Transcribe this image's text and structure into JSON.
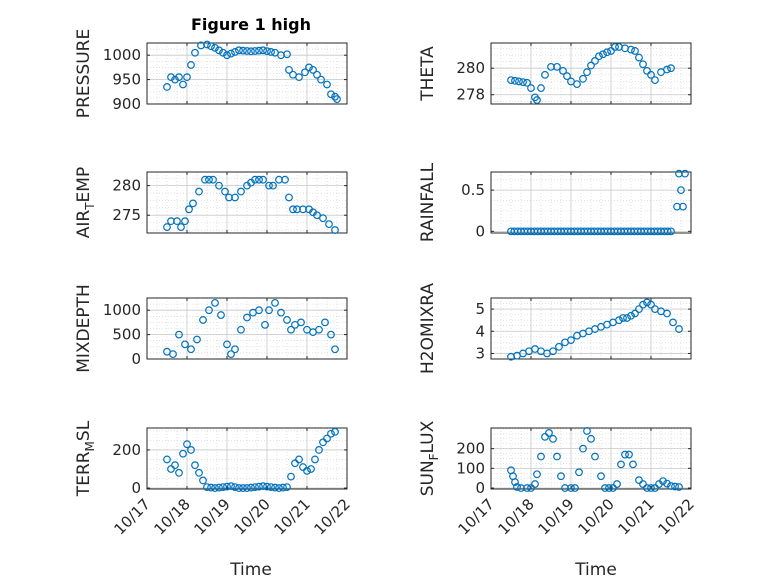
{
  "figure": {
    "title": "Figure 1 high",
    "marker_color": "#0072BD",
    "axis_color": "#262626"
  },
  "chart_data": [
    {
      "type": "scatter",
      "ylabel": "PRESSURE",
      "ylabel_sub": "",
      "ylabel_rest": "",
      "ylim": [
        900,
        1025
      ],
      "yticks": [
        900,
        950,
        1000
      ],
      "x": [
        17.5,
        17.6,
        17.7,
        17.8,
        17.9,
        18.0,
        18.1,
        18.2,
        18.35,
        18.5,
        18.7,
        19.0,
        19.3,
        19.6,
        19.9,
        20.2,
        20.35,
        20.5,
        20.55,
        20.65,
        20.8,
        20.95,
        21.05,
        21.15,
        21.25,
        21.35,
        21.5,
        21.6,
        21.7,
        21.75
      ],
      "y": [
        935,
        955,
        950,
        955,
        940,
        955,
        980,
        1005,
        1020,
        1022,
        1015,
        1000,
        1010,
        1008,
        1010,
        1005,
        1000,
        1002,
        970,
        960,
        955,
        965,
        975,
        970,
        960,
        950,
        940,
        920,
        915,
        910
      ]
    },
    {
      "type": "scatter",
      "ylabel": "THETA",
      "ylabel_sub": "",
      "ylabel_rest": "",
      "ylim": [
        277.3,
        281.9
      ],
      "yticks": [
        278,
        280
      ],
      "x": [
        17.5,
        17.7,
        17.9,
        18.0,
        18.1,
        18.15,
        18.25,
        18.35,
        18.5,
        18.65,
        18.8,
        19.0,
        19.15,
        19.3,
        19.5,
        19.7,
        19.9,
        20.0,
        20.1,
        20.2,
        20.35,
        20.5,
        20.6,
        20.7,
        20.8,
        20.9,
        21.0,
        21.1,
        21.25,
        21.4,
        21.5
      ],
      "y": [
        279.1,
        279.0,
        278.9,
        278.5,
        277.8,
        277.6,
        278.5,
        279.5,
        280.1,
        280.1,
        279.8,
        279.0,
        278.8,
        279.2,
        280.2,
        280.9,
        281.2,
        281.3,
        281.6,
        281.6,
        281.5,
        281.4,
        281.3,
        280.8,
        280.3,
        279.8,
        279.5,
        279.1,
        279.7,
        279.9,
        280.0
      ]
    },
    {
      "type": "scatter",
      "ylabel": "AIR",
      "ylabel_sub": "T",
      "ylabel_rest": "EMP",
      "ylim": [
        272,
        282.3
      ],
      "yticks": [
        275,
        280
      ],
      "x": [
        17.5,
        17.6,
        17.75,
        17.85,
        17.95,
        18.05,
        18.15,
        18.3,
        18.45,
        18.65,
        18.8,
        18.95,
        19.05,
        19.2,
        19.35,
        19.5,
        19.7,
        19.9,
        20.05,
        20.15,
        20.3,
        20.45,
        20.55,
        20.65,
        20.75,
        20.9,
        21.05,
        21.15,
        21.25,
        21.4,
        21.55,
        21.7
      ],
      "y": [
        273,
        274,
        274,
        273,
        274,
        276,
        277,
        279,
        281,
        281,
        280,
        279,
        278,
        278,
        279,
        280,
        281,
        281,
        280,
        280,
        281,
        281,
        278,
        276,
        276,
        276,
        276,
        275.5,
        275,
        274.5,
        273.5,
        272.5
      ]
    },
    {
      "type": "scatter",
      "ylabel": "RAINFALL",
      "ylabel_sub": "",
      "ylabel_rest": "",
      "ylim": [
        -0.02,
        0.72
      ],
      "yticks": [
        0,
        0.5
      ],
      "x": [
        17.5,
        17.75,
        18.0,
        18.25,
        18.5,
        18.75,
        19.0,
        19.25,
        19.5,
        19.75,
        20.0,
        20.25,
        20.5,
        20.75,
        21.0,
        21.25,
        21.5,
        21.65,
        21.7,
        21.75,
        21.8,
        21.85
      ],
      "y": [
        0,
        0,
        0,
        0,
        0,
        0,
        0,
        0,
        0,
        0,
        0,
        0,
        0,
        0,
        0,
        0,
        0,
        0.3,
        0.7,
        0.5,
        0.3,
        0.7
      ]
    },
    {
      "type": "scatter",
      "ylabel": "MIXDEPTH",
      "ylabel_sub": "",
      "ylabel_rest": "",
      "ylim": [
        0,
        1250
      ],
      "yticks": [
        0,
        500,
        1000
      ],
      "x": [
        17.5,
        17.65,
        17.8,
        17.95,
        18.1,
        18.25,
        18.4,
        18.55,
        18.7,
        18.85,
        19.0,
        19.1,
        19.2,
        19.35,
        19.5,
        19.65,
        19.8,
        19.95,
        20.05,
        20.2,
        20.35,
        20.5,
        20.6,
        20.7,
        20.85,
        21.0,
        21.15,
        21.3,
        21.45,
        21.6,
        21.7
      ],
      "y": [
        150,
        100,
        500,
        300,
        200,
        400,
        800,
        1000,
        1150,
        900,
        300,
        100,
        200,
        600,
        850,
        950,
        1000,
        700,
        1000,
        1150,
        950,
        800,
        600,
        700,
        750,
        600,
        550,
        600,
        750,
        500,
        200
      ]
    },
    {
      "type": "scatter",
      "ylabel": "H2OMIXRA",
      "ylabel_sub": "",
      "ylabel_rest": "",
      "ylim": [
        2.75,
        5.5
      ],
      "yticks": [
        3,
        4,
        5
      ],
      "x": [
        17.5,
        17.65,
        17.8,
        17.95,
        18.1,
        18.25,
        18.4,
        18.55,
        18.7,
        18.85,
        19.0,
        19.15,
        19.3,
        19.45,
        19.6,
        19.75,
        19.9,
        20.05,
        20.2,
        20.3,
        20.4,
        20.5,
        20.6,
        20.7,
        20.8,
        20.9,
        21.0,
        21.1,
        21.25,
        21.4,
        21.55,
        21.7
      ],
      "y": [
        2.85,
        2.9,
        3.0,
        3.1,
        3.2,
        3.1,
        3.0,
        3.1,
        3.3,
        3.5,
        3.6,
        3.8,
        3.9,
        4.0,
        4.1,
        4.2,
        4.3,
        4.4,
        4.5,
        4.6,
        4.6,
        4.7,
        4.8,
        5.0,
        5.2,
        5.3,
        5.2,
        5.0,
        4.9,
        4.8,
        4.4,
        4.1
      ]
    },
    {
      "type": "scatter",
      "ylabel": "TERR",
      "ylabel_sub": "M",
      "ylabel_rest": "SL",
      "ylim": [
        -5,
        315
      ],
      "yticks": [
        0,
        200
      ],
      "x": [
        17.5,
        17.6,
        17.7,
        17.8,
        17.9,
        18.0,
        18.1,
        18.2,
        18.3,
        18.4,
        18.5,
        18.7,
        18.9,
        19.1,
        19.3,
        19.5,
        19.7,
        19.9,
        20.1,
        20.3,
        20.5,
        20.6,
        20.7,
        20.8,
        20.9,
        21.0,
        21.1,
        21.2,
        21.3,
        21.4,
        21.5,
        21.6,
        21.7
      ],
      "y": [
        150,
        100,
        120,
        80,
        180,
        230,
        200,
        120,
        80,
        40,
        5,
        0,
        5,
        10,
        0,
        0,
        5,
        10,
        5,
        0,
        5,
        60,
        130,
        150,
        110,
        90,
        100,
        150,
        200,
        240,
        260,
        285,
        295
      ]
    },
    {
      "type": "scatter",
      "ylabel": "SUN",
      "ylabel_sub": "F",
      "ylabel_rest": "LUX",
      "ylim": [
        -5,
        305
      ],
      "yticks": [
        0,
        100,
        200
      ],
      "x": [
        17.5,
        17.55,
        17.6,
        17.65,
        17.75,
        17.9,
        18.0,
        18.1,
        18.15,
        18.25,
        18.35,
        18.45,
        18.55,
        18.65,
        18.75,
        18.85,
        19.0,
        19.1,
        19.2,
        19.3,
        19.4,
        19.5,
        19.6,
        19.75,
        19.85,
        19.95,
        20.05,
        20.15,
        20.25,
        20.35,
        20.45,
        20.55,
        20.7,
        20.9,
        21.1,
        21.2,
        21.3,
        21.5,
        21.7
      ],
      "y": [
        90,
        60,
        30,
        5,
        0,
        0,
        0,
        20,
        70,
        160,
        260,
        280,
        250,
        160,
        60,
        0,
        0,
        0,
        80,
        200,
        290,
        250,
        160,
        60,
        0,
        0,
        0,
        20,
        120,
        170,
        170,
        120,
        40,
        0,
        0,
        20,
        35,
        10,
        5
      ]
    }
  ],
  "x_axis": {
    "ticks": [
      "10/17",
      "10/18",
      "10/19",
      "10/20",
      "10/21",
      "10/22"
    ],
    "tick_values": [
      17,
      18,
      19,
      20,
      21,
      22
    ],
    "xlim": [
      17,
      22
    ],
    "label": "Time"
  }
}
